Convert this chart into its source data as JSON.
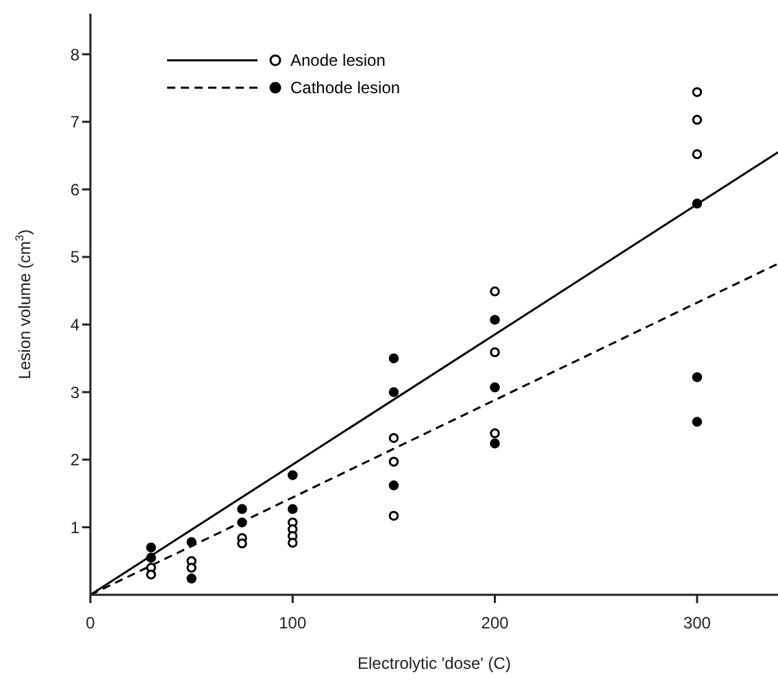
{
  "chart_data": {
    "type": "scatter",
    "xlabel": "Electrolytic 'dose' (C)",
    "ylabel": "Lesion volume (cm$^{3}$)",
    "xlim": [
      0,
      340
    ],
    "ylim": [
      0,
      8.6
    ],
    "xticks": [
      0,
      100,
      200,
      300
    ],
    "yticks": [
      1,
      2,
      3,
      4,
      5,
      6,
      7,
      8
    ],
    "grid": false,
    "legend": "top left",
    "series": [
      {
        "name": "Anode lesion",
        "marker": "circle",
        "color": "#000000",
        "x": [
          30,
          30,
          50,
          50,
          75,
          75,
          100,
          100,
          100,
          100,
          150,
          150,
          150,
          200,
          200,
          200,
          300,
          300,
          300
        ],
        "values": [
          0.4,
          0.3,
          0.5,
          0.4,
          0.84,
          0.76,
          1.07,
          0.97,
          0.87,
          0.77,
          2.32,
          1.97,
          1.17,
          4.49,
          3.59,
          2.39,
          7.44,
          7.03,
          6.52
        ]
      },
      {
        "name": "Cathode lesion",
        "marker": "circle",
        "color": "#000000",
        "x": [
          30,
          30,
          50,
          50,
          75,
          75,
          100,
          100,
          150,
          150,
          150,
          200,
          200,
          200,
          300,
          300,
          300
        ],
        "values": [
          0.7,
          0.55,
          0.78,
          0.24,
          1.27,
          1.07,
          1.77,
          1.27,
          3.5,
          3.0,
          1.62,
          4.07,
          3.07,
          2.24,
          5.79,
          3.22,
          2.56
        ]
      },
      {
        "type": "line",
        "marker": "none",
        "line_style": "solid",
        "color": "#000000",
        "x": [
          0,
          340
        ],
        "values": [
          0,
          6.55
        ]
      },
      {
        "type": "line",
        "marker": "none",
        "line_style": "dashed",
        "color": "#000000",
        "x": [
          0,
          340
        ],
        "values": [
          0,
          4.9
        ]
      }
    ]
  }
}
